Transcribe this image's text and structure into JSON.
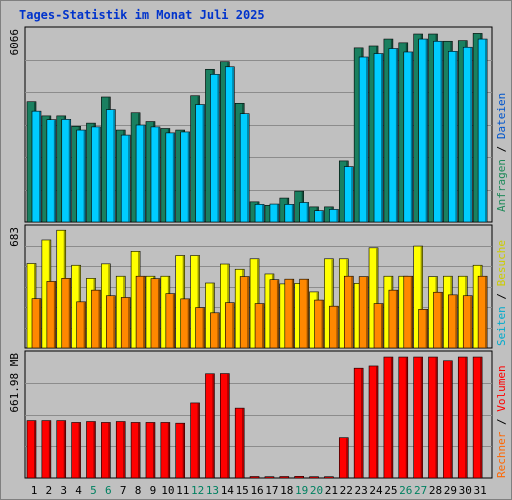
{
  "title": "Tages-Statistik im Monat Juli 2025",
  "chart_data": {
    "type": "bar",
    "categories": [
      "1",
      "2",
      "3",
      "4",
      "5",
      "6",
      "7",
      "8",
      "9",
      "10",
      "11",
      "12",
      "13",
      "14",
      "15",
      "16",
      "17",
      "18",
      "19",
      "20",
      "21",
      "22",
      "23",
      "24",
      "25",
      "26",
      "27",
      "28",
      "29",
      "30",
      "31"
    ],
    "weekend_days": [
      "5",
      "6",
      "12",
      "13",
      "19",
      "20",
      "26",
      "27"
    ],
    "panels": [
      {
        "name": "traffic",
        "ymax_label": "6066",
        "ylim": [
          0,
          6066
        ],
        "legend": [
          {
            "text": "Anfragen",
            "color": "#1f8a5a"
          },
          {
            "text": "Dateien",
            "color": "#0055cc"
          }
        ],
        "series": [
          {
            "name": "Anfragen",
            "color": "#1a8060",
            "values": [
              3820,
              3370,
              3370,
              3040,
              3140,
              3970,
              2920,
              3470,
              3190,
              2970,
              2920,
              4010,
              4850,
              5090,
              3770,
              640,
              530,
              760,
              980,
              480,
              480,
              1940,
              5530,
              5590,
              5810,
              5690,
              5970,
              5970,
              5740,
              5760,
              5990
            ]
          },
          {
            "name": "Dateien",
            "color": "#00ccff",
            "values": [
              3520,
              3250,
              3260,
              2920,
              3020,
              3570,
              2760,
              3080,
              3020,
              2830,
              2860,
              3730,
              4690,
              4930,
              3440,
              560,
              570,
              560,
              620,
              360,
              400,
              1760,
              5240,
              5350,
              5510,
              5400,
              5810,
              5740,
              5420,
              5550,
              5810
            ]
          }
        ]
      },
      {
        "name": "visitors",
        "ymax_label": "683",
        "ylim": [
          0,
          683
        ],
        "legend": [
          {
            "text": "Seiten",
            "color": "#00aacc"
          },
          {
            "text": "Besuche",
            "color": "#cccc00"
          }
        ],
        "series": [
          {
            "name": "Besuche",
            "color": "#ffff00",
            "values": [
              485,
              620,
              676,
              475,
              400,
              483,
              412,
              555,
              412,
              412,
              531,
              531,
              373,
              482,
              452,
              512,
              425,
              368,
              371,
              322,
              512,
              512,
              371,
              575,
              412,
              412,
              585,
              410,
              412,
              412,
              475
            ]
          },
          {
            "name": "Seiten",
            "color": "#ff8800",
            "values": [
              283,
              382,
              400,
              265,
              332,
              300,
              290,
              412,
              398,
              312,
              282,
              232,
              202,
              260,
              410,
              255,
              392,
              395,
              395,
              275,
              240,
              412,
              410,
              255,
              332,
              412,
              222,
              320,
              305,
              300,
              412
            ]
          }
        ]
      },
      {
        "name": "volume",
        "ymax_label": "661.98 MB",
        "ylim": [
          0,
          661.98
        ],
        "legend": [
          {
            "text": "Rechner",
            "color": "#ff6600"
          },
          {
            "text": "Volumen",
            "color": "#ff0000"
          }
        ],
        "series": [
          {
            "name": "Volumen",
            "color": "#ff0000",
            "values": [
              309,
              309,
              309,
              299,
              304,
              299,
              304,
              299,
              299,
              299,
              295,
              404,
              561,
              562,
              376,
              8,
              7,
              8,
              9,
              7,
              7,
              217,
              591,
              603,
              651,
              651,
              651,
              651,
              631,
              651,
              651
            ]
          }
        ]
      }
    ]
  }
}
